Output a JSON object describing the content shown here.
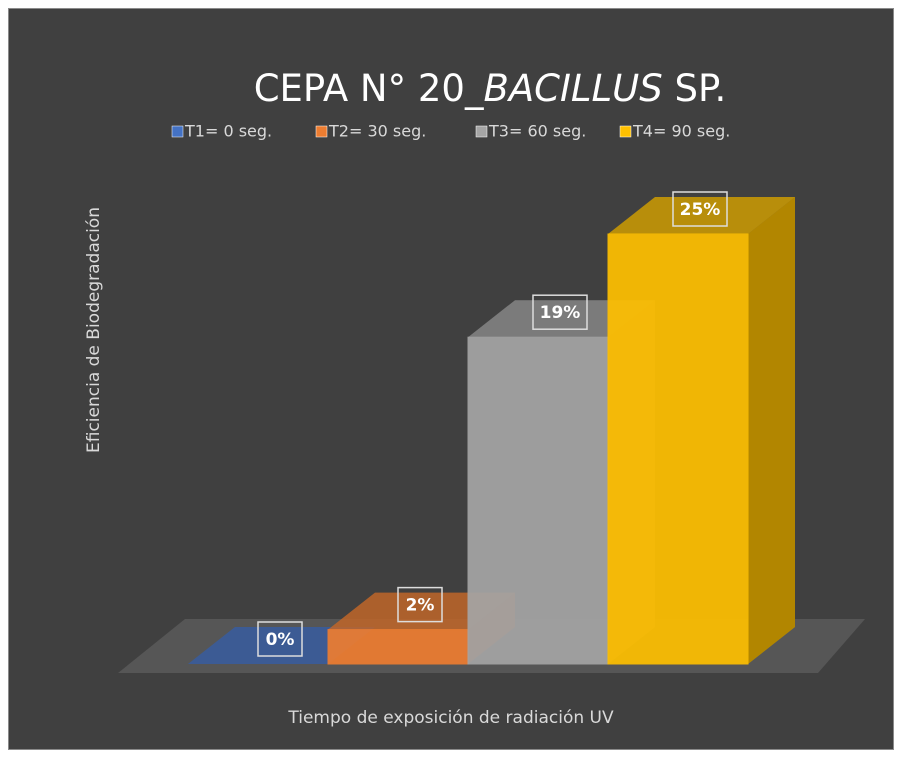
{
  "chart_data": {
    "type": "bar3d",
    "title": [
      "CEPA N° 20_",
      "BACILLUS",
      " SP."
    ],
    "x_label": "Tiempo de exposición de radiación UV",
    "y_label": "Eficiencia de Biodegradación",
    "ylim": [
      0,
      30
    ],
    "legend": "top",
    "series": [
      {
        "name": "T1= 0 seg.",
        "color": "#4472c4",
        "values": [
          0
        ],
        "value_labels": [
          "0%"
        ]
      },
      {
        "name": "T2= 30 seg.",
        "color": "#ed7d31",
        "values": [
          2
        ],
        "value_labels": [
          "2%"
        ]
      },
      {
        "name": "T3= 60 seg.",
        "color": "#a5a5a5",
        "values": [
          19
        ],
        "value_labels": [
          "19%"
        ]
      },
      {
        "name": "T4= 90 seg.",
        "color": "#ffc000",
        "values": [
          25
        ],
        "value_labels": [
          "25%"
        ]
      }
    ]
  }
}
